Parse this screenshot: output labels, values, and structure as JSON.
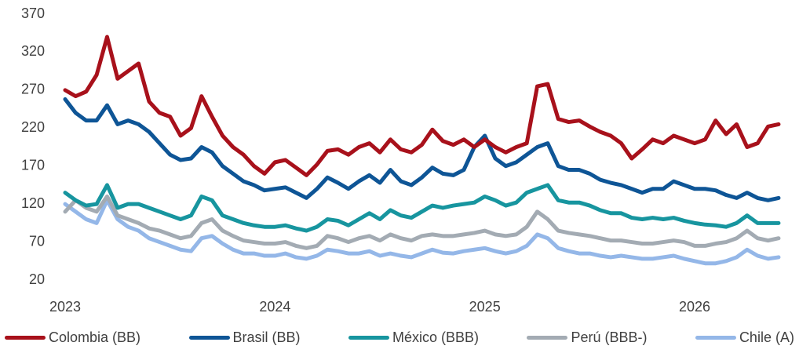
{
  "chart_data": {
    "type": "line",
    "x": [
      2023,
      2023.05,
      2023.1,
      2023.15,
      2023.2,
      2023.25,
      2023.3,
      2023.35,
      2023.4,
      2023.45,
      2023.5,
      2023.55,
      2023.6,
      2023.65,
      2023.7,
      2023.75,
      2023.8,
      2023.85,
      2023.9,
      2023.95,
      2024,
      2024.05,
      2024.1,
      2024.15,
      2024.2,
      2024.25,
      2024.3,
      2024.35,
      2024.4,
      2024.45,
      2024.5,
      2024.55,
      2024.6,
      2024.65,
      2024.7,
      2024.75,
      2024.8,
      2024.85,
      2024.9,
      2024.95,
      2025,
      2025.05,
      2025.1,
      2025.15,
      2025.2,
      2025.25,
      2025.3,
      2025.35,
      2025.4,
      2025.45,
      2025.5,
      2025.55,
      2025.6,
      2025.65,
      2025.7,
      2025.75,
      2025.8,
      2025.85,
      2025.9,
      2025.95,
      2026,
      2026.05,
      2026.1,
      2026.15,
      2026.2,
      2026.25,
      2026.3,
      2026.35,
      2026.4
    ],
    "series": [
      {
        "name": "Colombia (BB)",
        "color": "#a8111b",
        "values": [
          270,
          262,
          268,
          290,
          340,
          285,
          295,
          305,
          255,
          240,
          235,
          210,
          220,
          262,
          235,
          210,
          195,
          185,
          170,
          160,
          175,
          178,
          168,
          158,
          172,
          190,
          192,
          185,
          195,
          200,
          188,
          205,
          192,
          188,
          198,
          218,
          203,
          198,
          205,
          195,
          205,
          195,
          188,
          195,
          200,
          275,
          278,
          232,
          228,
          230,
          222,
          215,
          210,
          200,
          180,
          192,
          205,
          200,
          210,
          205,
          200,
          205,
          230,
          212,
          225,
          195,
          200,
          222,
          225
        ]
      },
      {
        "name": "Brasil (BB)",
        "color": "#0e5596",
        "values": [
          258,
          240,
          230,
          230,
          250,
          225,
          230,
          225,
          215,
          200,
          185,
          178,
          180,
          195,
          188,
          170,
          160,
          150,
          145,
          138,
          140,
          142,
          135,
          128,
          140,
          155,
          148,
          140,
          150,
          158,
          148,
          165,
          150,
          145,
          155,
          168,
          160,
          158,
          165,
          195,
          210,
          180,
          170,
          175,
          185,
          195,
          200,
          170,
          165,
          165,
          160,
          152,
          148,
          145,
          140,
          135,
          140,
          140,
          150,
          145,
          140,
          140,
          138,
          132,
          128,
          135,
          128,
          125,
          128
        ]
      },
      {
        "name": "México (BBB)",
        "color": "#17959f",
        "values": [
          135,
          125,
          118,
          120,
          145,
          115,
          120,
          120,
          115,
          110,
          105,
          100,
          105,
          130,
          125,
          105,
          100,
          95,
          92,
          90,
          90,
          92,
          88,
          85,
          90,
          100,
          98,
          92,
          100,
          108,
          100,
          112,
          105,
          102,
          110,
          118,
          115,
          118,
          120,
          122,
          130,
          125,
          118,
          122,
          135,
          140,
          145,
          125,
          122,
          122,
          118,
          112,
          108,
          108,
          102,
          100,
          102,
          100,
          102,
          98,
          95,
          93,
          92,
          90,
          95,
          105,
          95,
          95,
          95
        ]
      },
      {
        "name": "Perú (BBB-)",
        "color": "#a3abb3",
        "values": [
          110,
          125,
          115,
          110,
          130,
          105,
          100,
          95,
          88,
          85,
          80,
          75,
          78,
          95,
          100,
          85,
          78,
          72,
          70,
          68,
          68,
          70,
          65,
          62,
          65,
          78,
          75,
          70,
          75,
          78,
          72,
          80,
          75,
          72,
          78,
          80,
          78,
          78,
          80,
          82,
          85,
          80,
          78,
          80,
          90,
          110,
          100,
          85,
          82,
          80,
          78,
          75,
          72,
          72,
          70,
          68,
          68,
          70,
          72,
          70,
          65,
          65,
          68,
          70,
          75,
          85,
          75,
          72,
          75
        ]
      },
      {
        "name": "Chile (A)",
        "color": "#94b7e8",
        "values": [
          120,
          110,
          100,
          95,
          125,
          100,
          90,
          85,
          75,
          70,
          65,
          60,
          58,
          75,
          78,
          68,
          60,
          55,
          55,
          52,
          52,
          55,
          50,
          48,
          52,
          60,
          58,
          55,
          55,
          58,
          52,
          55,
          52,
          50,
          55,
          60,
          56,
          55,
          58,
          60,
          62,
          58,
          55,
          58,
          65,
          80,
          75,
          62,
          58,
          55,
          55,
          52,
          50,
          52,
          50,
          48,
          48,
          50,
          52,
          48,
          45,
          42,
          42,
          45,
          50,
          60,
          52,
          48,
          50
        ]
      }
    ],
    "xlim": [
      2023,
      2026.43
    ],
    "xticks": [
      2023,
      2024,
      2025,
      2026
    ],
    "ylim": [
      20,
      370
    ],
    "yticks": [
      20,
      70,
      120,
      170,
      220,
      270,
      320,
      370
    ],
    "grid": false
  }
}
